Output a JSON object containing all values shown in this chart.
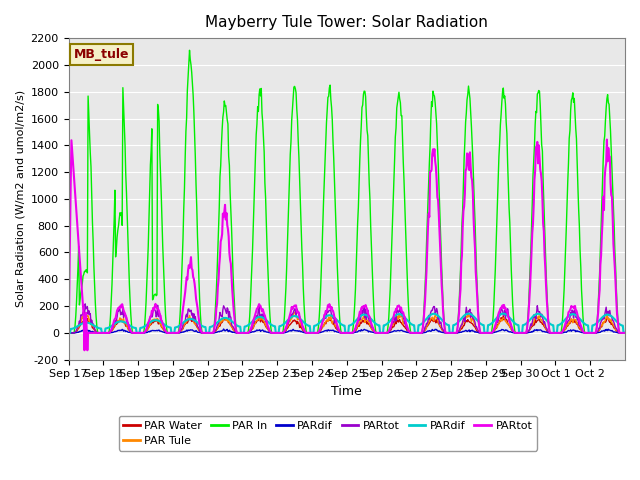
{
  "title": "Mayberry Tule Tower: Solar Radiation",
  "xlabel": "Time",
  "ylabel": "Solar Radiation (W/m2 and umol/m2/s)",
  "ylim": [
    -200,
    2200
  ],
  "yticks": [
    -200,
    0,
    200,
    400,
    600,
    800,
    1000,
    1200,
    1400,
    1600,
    1800,
    2000,
    2200
  ],
  "x_tick_labels": [
    "Sep 17",
    "Sep 18",
    "Sep 19",
    "Sep 20",
    "Sep 21",
    "Sep 22",
    "Sep 23",
    "Sep 24",
    "Sep 25",
    "Sep 26",
    "Sep 27",
    "Sep 28",
    "Sep 29",
    "Sep 30",
    "Oct 1",
    "Oct 2"
  ],
  "background_color": "#e8e8e8",
  "legend_box_color": "#f5f0c8",
  "legend_box_edge": "#8b7a00",
  "legend_label_color": "#8b0000",
  "series": {
    "PAR_Water": {
      "color": "#cc0000",
      "lw": 1.0
    },
    "PAR_Tule": {
      "color": "#ff8800",
      "lw": 1.0
    },
    "PAR_In": {
      "color": "#00ee00",
      "lw": 1.0
    },
    "PARdif1": {
      "color": "#0000cc",
      "lw": 1.0
    },
    "PARtot1": {
      "color": "#9900cc",
      "lw": 1.0
    },
    "PARdif2": {
      "color": "#00cccc",
      "lw": 1.5
    },
    "PARtot2": {
      "color": "#ee00ee",
      "lw": 1.5
    }
  }
}
